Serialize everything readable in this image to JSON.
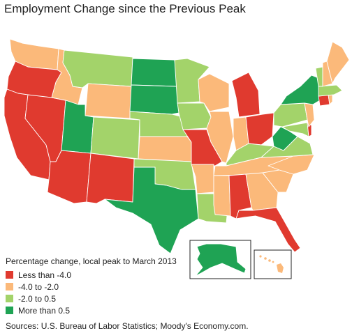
{
  "title": "Employment Change since the Previous Peak",
  "legend": {
    "title": "Percentage change, local peak to March 2013",
    "items": [
      {
        "label": "Less than -4.0",
        "color": "#e03a2f"
      },
      {
        "label": "-4.0 to -2.0",
        "color": "#fbb97a"
      },
      {
        "label": "-2.0 to 0.5",
        "color": "#a3d36a"
      },
      {
        "label": "More than 0.5",
        "color": "#1fa354"
      }
    ]
  },
  "source": "Sources: U.S. Bureau of Labor Statistics; Moody's Economy.com.",
  "states": {
    "WA": 1,
    "OR": 0,
    "CA": 0,
    "NV": 0,
    "ID": 1,
    "MT": 2,
    "WY": 1,
    "UT": 3,
    "AZ": 0,
    "CO": 2,
    "NM": 0,
    "ND": 3,
    "SD": 3,
    "NE": 2,
    "KS": 1,
    "OK": 2,
    "TX": 3,
    "MN": 2,
    "IA": 2,
    "MO": 0,
    "AR": 1,
    "LA": 2,
    "WI": 1,
    "IL": 1,
    "MI": 0,
    "IN": 1,
    "OH": 0,
    "KY": 2,
    "TN": 1,
    "MS": 1,
    "AL": 0,
    "GA": 1,
    "FL": 0,
    "SC": 1,
    "NC": 1,
    "VA": 2,
    "WV": 3,
    "MD": 2,
    "DE": 0,
    "PA": 2,
    "NJ": 1,
    "NY": 3,
    "CT": 0,
    "RI": 1,
    "MA": 2,
    "VT": 2,
    "NH": 1,
    "ME": 1,
    "AK": 3,
    "HI": 1
  }
}
